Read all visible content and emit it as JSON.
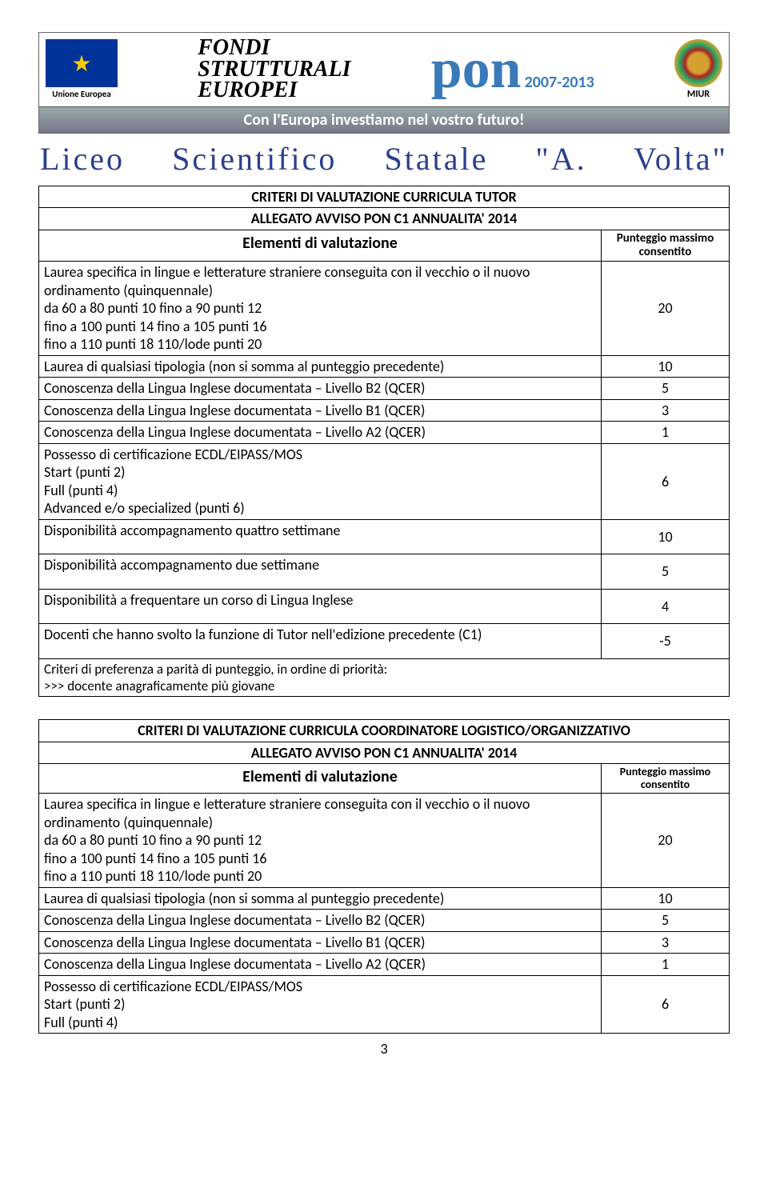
{
  "banner": {
    "eu_label": "Unione Europea",
    "fondi_line1": "FONDI",
    "fondi_line2": "STRUTTURALI",
    "fondi_line3": "EUROPEI",
    "pon_text": "pon",
    "pon_years": "2007-2013",
    "miur_label": "MIUR",
    "stripe": "Con l'Europa investiamo nel vostro futuro!"
  },
  "school_title": "Liceo Scientifico Statale \"A. Volta\"",
  "table1": {
    "title": "CRITERI DI VALUTAZIONE CURRICULA TUTOR",
    "subtitle": "ALLEGATO AVVISO PON C1 ANNUALITA' 2014",
    "col_elem": "Elementi di valutazione",
    "col_pts": "Punteggio massimo consentito",
    "rows": [
      {
        "text": "Laurea  specifica in lingue e letterature straniere conseguita con il vecchio o il nuovo ordinamento (quinquennale)\nda 60 a 80          punti 10               fino a 90          punti  12\nfino a 100          punti  14              fino a 105        punti  16\nfino a 110          punti 18               110/lode          punti  20",
        "score": "20"
      },
      {
        "text": "Laurea di qualsiasi tipologia (non si somma al punteggio precedente)",
        "score": "10"
      },
      {
        "text": "Conoscenza della Lingua Inglese documentata – Livello B2 (QCER)",
        "score": "5"
      },
      {
        "text": "Conoscenza della Lingua Inglese documentata – Livello B1 (QCER)",
        "score": "3"
      },
      {
        "text": "Conoscenza della Lingua Inglese documentata – Livello A2 (QCER)",
        "score": "1"
      },
      {
        "text": "Possesso di certificazione ECDL/EIPASS/MOS\nStart  (punti 2)\nFull (punti 4)\nAdvanced e/o specialized  (punti 6)",
        "score": "6"
      },
      {
        "text": "Disponibilità accompagnamento  quattro settimane",
        "score": "10"
      },
      {
        "text": "Disponibilità accompagnamento  due settimane",
        "score": "5"
      },
      {
        "text": "Disponibilità a frequentare un corso di Lingua Inglese",
        "score": "4"
      },
      {
        "text": "Docenti che hanno svolto la funzione di Tutor nell'edizione precedente (C1)",
        "score": "-5"
      }
    ],
    "footer": "Criteri di preferenza a parità di punteggio, in ordine di priorità:\n>>> docente anagraficamente più giovane"
  },
  "table2": {
    "title": "CRITERI DI VALUTAZIONE CURRICULA COORDINATORE LOGISTICO/ORGANIZZATIVO",
    "subtitle": "ALLEGATO AVVISO PON C1 ANNUALITA' 2014",
    "col_elem": "Elementi di valutazione",
    "col_pts": "Punteggio massimo consentito",
    "rows": [
      {
        "text": "Laurea  specifica in lingue e letterature straniere conseguita con il vecchio o il nuovo ordinamento (quinquennale)\nda 60 a 80          punti 10               fino a 90          punti  12\nfino a 100          punti  14              fino a 105        punti  16\nfino a 110          punti 18               110/lode          punti  20",
        "score": "20"
      },
      {
        "text": "Laurea di qualsiasi tipologia (non si somma al punteggio precedente)",
        "score": "10"
      },
      {
        "text": "Conoscenza della Lingua Inglese documentata – Livello B2 (QCER)",
        "score": "5"
      },
      {
        "text": "Conoscenza della Lingua Inglese documentata – Livello B1 (QCER)",
        "score": "3"
      },
      {
        "text": "Conoscenza della Lingua Inglese documentata – Livello A2 (QCER)",
        "score": "1"
      },
      {
        "text": "Possesso di certificazione ECDL/EIPASS/MOS\nStart  (punti 2)\nFull (punti 4)",
        "score": "6"
      }
    ]
  },
  "page_number": "3"
}
